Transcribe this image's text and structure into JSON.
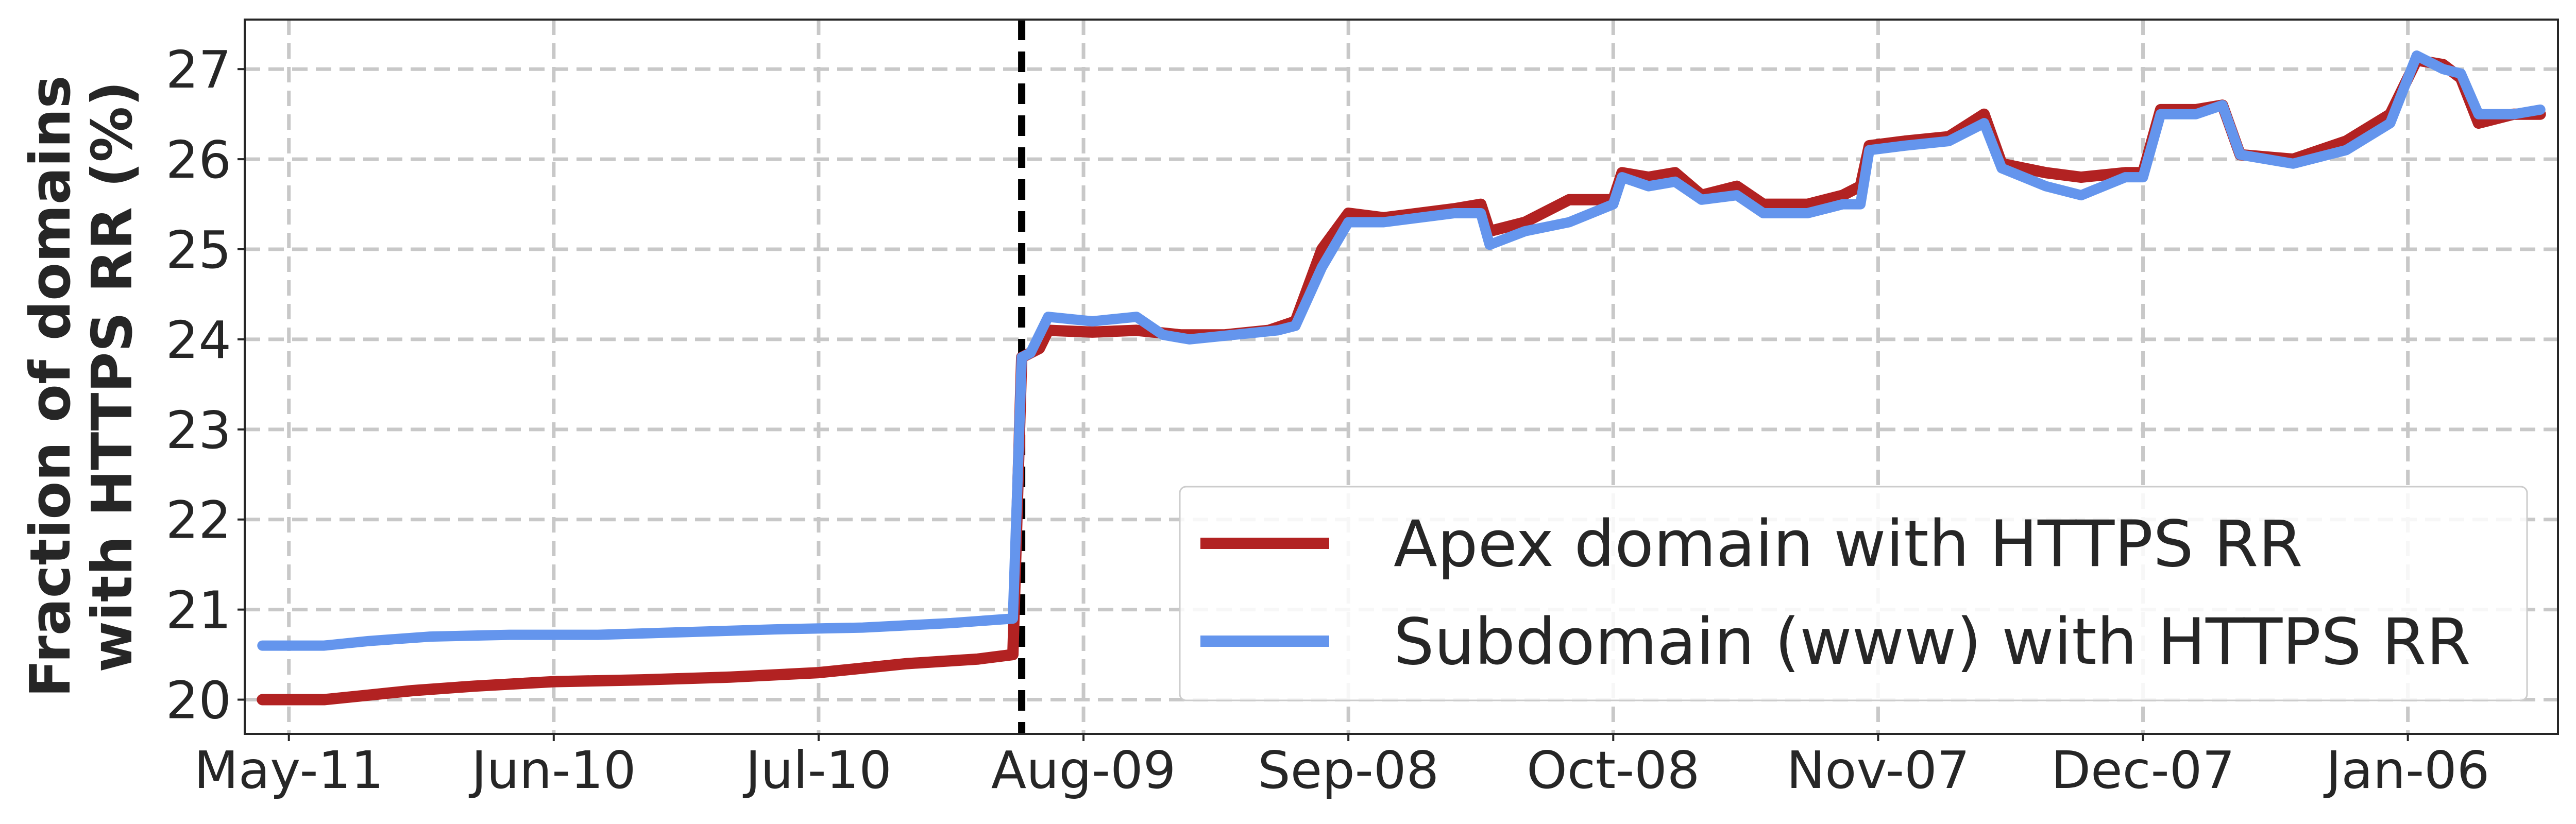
{
  "chart_data": {
    "type": "line",
    "title": "",
    "xlabel": "",
    "ylabel": [
      "Fraction of domains",
      "with HTTPS RR (%)"
    ],
    "ylim": [
      19.62,
      27.55
    ],
    "xlim": [
      "2023-05-06",
      "2024-01-23"
    ],
    "yticks": [
      20,
      21,
      22,
      23,
      24,
      25,
      26,
      27
    ],
    "xticks": [
      {
        "date": "2023-05-11",
        "label": "May-11"
      },
      {
        "date": "2023-06-10",
        "label": "Jun-10"
      },
      {
        "date": "2023-07-10",
        "label": "Jul-10"
      },
      {
        "date": "2023-08-09",
        "label": "Aug-09"
      },
      {
        "date": "2023-09-08",
        "label": "Sep-08"
      },
      {
        "date": "2023-10-08",
        "label": "Oct-08"
      },
      {
        "date": "2023-11-07",
        "label": "Nov-07"
      },
      {
        "date": "2023-12-07",
        "label": "Dec-07"
      },
      {
        "date": "2024-01-06",
        "label": "Jan-06"
      }
    ],
    "grid": true,
    "legend_position": "lower-right",
    "vline": {
      "date": "2023-08-02",
      "style": "dashed",
      "color": "#000000"
    },
    "series": [
      {
        "name": "Apex domain with HTTPS RR",
        "color": "#b22222",
        "points": [
          [
            "2023-05-08",
            20.0
          ],
          [
            "2023-05-15",
            20.0
          ],
          [
            "2023-05-20",
            20.05
          ],
          [
            "2023-05-25",
            20.1
          ],
          [
            "2023-06-01",
            20.15
          ],
          [
            "2023-06-10",
            20.2
          ],
          [
            "2023-06-20",
            20.22
          ],
          [
            "2023-06-30",
            20.25
          ],
          [
            "2023-07-10",
            20.3
          ],
          [
            "2023-07-20",
            20.4
          ],
          [
            "2023-07-28",
            20.45
          ],
          [
            "2023-08-01",
            20.5
          ],
          [
            "2023-08-02",
            23.8
          ],
          [
            "2023-08-04",
            23.9
          ],
          [
            "2023-08-05",
            24.1
          ],
          [
            "2023-08-10",
            24.08
          ],
          [
            "2023-08-15",
            24.1
          ],
          [
            "2023-08-20",
            24.05
          ],
          [
            "2023-08-25",
            24.05
          ],
          [
            "2023-08-30",
            24.1
          ],
          [
            "2023-09-02",
            24.2
          ],
          [
            "2023-09-05",
            25.0
          ],
          [
            "2023-09-08",
            25.4
          ],
          [
            "2023-09-12",
            25.35
          ],
          [
            "2023-09-20",
            25.45
          ],
          [
            "2023-09-23",
            25.5
          ],
          [
            "2023-09-24",
            25.2
          ],
          [
            "2023-09-28",
            25.3
          ],
          [
            "2023-10-03",
            25.55
          ],
          [
            "2023-10-08",
            25.55
          ],
          [
            "2023-10-09",
            25.85
          ],
          [
            "2023-10-12",
            25.8
          ],
          [
            "2023-10-15",
            25.85
          ],
          [
            "2023-10-18",
            25.6
          ],
          [
            "2023-10-22",
            25.7
          ],
          [
            "2023-10-25",
            25.5
          ],
          [
            "2023-10-30",
            25.5
          ],
          [
            "2023-11-03",
            25.6
          ],
          [
            "2023-11-05",
            25.7
          ],
          [
            "2023-11-06",
            26.15
          ],
          [
            "2023-11-10",
            26.2
          ],
          [
            "2023-11-15",
            26.25
          ],
          [
            "2023-11-19",
            26.5
          ],
          [
            "2023-11-21",
            25.95
          ],
          [
            "2023-11-26",
            25.85
          ],
          [
            "2023-11-30",
            25.8
          ],
          [
            "2023-12-05",
            25.85
          ],
          [
            "2023-12-07",
            25.85
          ],
          [
            "2023-12-09",
            26.55
          ],
          [
            "2023-12-13",
            26.55
          ],
          [
            "2023-12-16",
            26.6
          ],
          [
            "2023-12-18",
            26.05
          ],
          [
            "2023-12-24",
            26.0
          ],
          [
            "2023-12-30",
            26.2
          ],
          [
            "2024-01-04",
            26.5
          ],
          [
            "2024-01-07",
            27.1
          ],
          [
            "2024-01-10",
            27.05
          ],
          [
            "2024-01-12",
            26.9
          ],
          [
            "2024-01-14",
            26.4
          ],
          [
            "2024-01-18",
            26.5
          ],
          [
            "2024-01-21",
            26.5
          ]
        ]
      },
      {
        "name": "Subdomain (www) with HTTPS RR",
        "color": "#6495ed",
        "points": [
          [
            "2023-05-08",
            20.6
          ],
          [
            "2023-05-15",
            20.6
          ],
          [
            "2023-05-20",
            20.65
          ],
          [
            "2023-05-27",
            20.7
          ],
          [
            "2023-06-05",
            20.72
          ],
          [
            "2023-06-15",
            20.72
          ],
          [
            "2023-06-25",
            20.75
          ],
          [
            "2023-07-05",
            20.78
          ],
          [
            "2023-07-15",
            20.8
          ],
          [
            "2023-07-25",
            20.85
          ],
          [
            "2023-08-01",
            20.9
          ],
          [
            "2023-08-02",
            23.8
          ],
          [
            "2023-08-03",
            23.85
          ],
          [
            "2023-08-05",
            24.25
          ],
          [
            "2023-08-10",
            24.2
          ],
          [
            "2023-08-15",
            24.25
          ],
          [
            "2023-08-18",
            24.05
          ],
          [
            "2023-08-21",
            24.0
          ],
          [
            "2023-08-26",
            24.05
          ],
          [
            "2023-08-31",
            24.1
          ],
          [
            "2023-09-02",
            24.15
          ],
          [
            "2023-09-05",
            24.8
          ],
          [
            "2023-09-08",
            25.3
          ],
          [
            "2023-09-12",
            25.3
          ],
          [
            "2023-09-20",
            25.4
          ],
          [
            "2023-09-23",
            25.4
          ],
          [
            "2023-09-24",
            25.05
          ],
          [
            "2023-09-28",
            25.2
          ],
          [
            "2023-10-03",
            25.3
          ],
          [
            "2023-10-08",
            25.5
          ],
          [
            "2023-10-09",
            25.8
          ],
          [
            "2023-10-12",
            25.7
          ],
          [
            "2023-10-15",
            25.75
          ],
          [
            "2023-10-18",
            25.55
          ],
          [
            "2023-10-22",
            25.6
          ],
          [
            "2023-10-25",
            25.4
          ],
          [
            "2023-10-30",
            25.4
          ],
          [
            "2023-11-03",
            25.5
          ],
          [
            "2023-11-05",
            25.5
          ],
          [
            "2023-11-06",
            26.1
          ],
          [
            "2023-11-10",
            26.15
          ],
          [
            "2023-11-15",
            26.2
          ],
          [
            "2023-11-19",
            26.4
          ],
          [
            "2023-11-21",
            25.9
          ],
          [
            "2023-11-26",
            25.7
          ],
          [
            "2023-11-30",
            25.6
          ],
          [
            "2023-12-05",
            25.8
          ],
          [
            "2023-12-07",
            25.8
          ],
          [
            "2023-12-09",
            26.5
          ],
          [
            "2023-12-13",
            26.5
          ],
          [
            "2023-12-16",
            26.6
          ],
          [
            "2023-12-18",
            26.05
          ],
          [
            "2023-12-24",
            25.95
          ],
          [
            "2023-12-30",
            26.1
          ],
          [
            "2024-01-04",
            26.4
          ],
          [
            "2024-01-07",
            27.15
          ],
          [
            "2024-01-10",
            27.0
          ],
          [
            "2024-01-12",
            26.95
          ],
          [
            "2024-01-14",
            26.5
          ],
          [
            "2024-01-18",
            26.5
          ],
          [
            "2024-01-21",
            26.55
          ]
        ]
      }
    ]
  }
}
